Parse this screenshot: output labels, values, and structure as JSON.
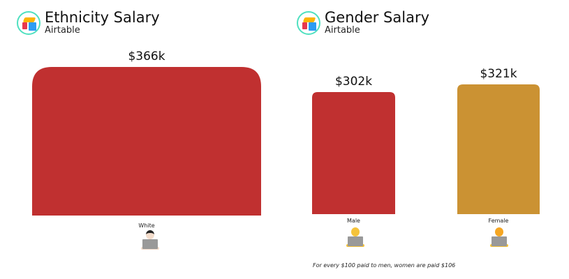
{
  "charts": [
    {
      "title": "Ethnicity Salary",
      "source": "Airtable"
    },
    {
      "title": "Gender Salary",
      "source": "Airtable"
    }
  ],
  "chart_data": [
    {
      "type": "bar",
      "title": "Ethnicity Salary",
      "categories": [
        "White"
      ],
      "values": [
        366
      ],
      "data_labels": [
        "$366k"
      ],
      "colors": [
        "#c03030"
      ],
      "unit": "$k"
    },
    {
      "type": "bar",
      "title": "Gender Salary",
      "categories": [
        "Male",
        "Female"
      ],
      "values": [
        302,
        321
      ],
      "data_labels": [
        "$302k",
        "$321k"
      ],
      "colors": [
        "#c03030",
        "#cb9233"
      ],
      "unit": "$k",
      "annotation": "For every $100 paid to men, women are paid $106"
    }
  ],
  "icons": [
    "airtable-logo-icon",
    "woman-technologist-light-skin-icon",
    "man-technologist-icon",
    "woman-technologist-icon"
  ]
}
